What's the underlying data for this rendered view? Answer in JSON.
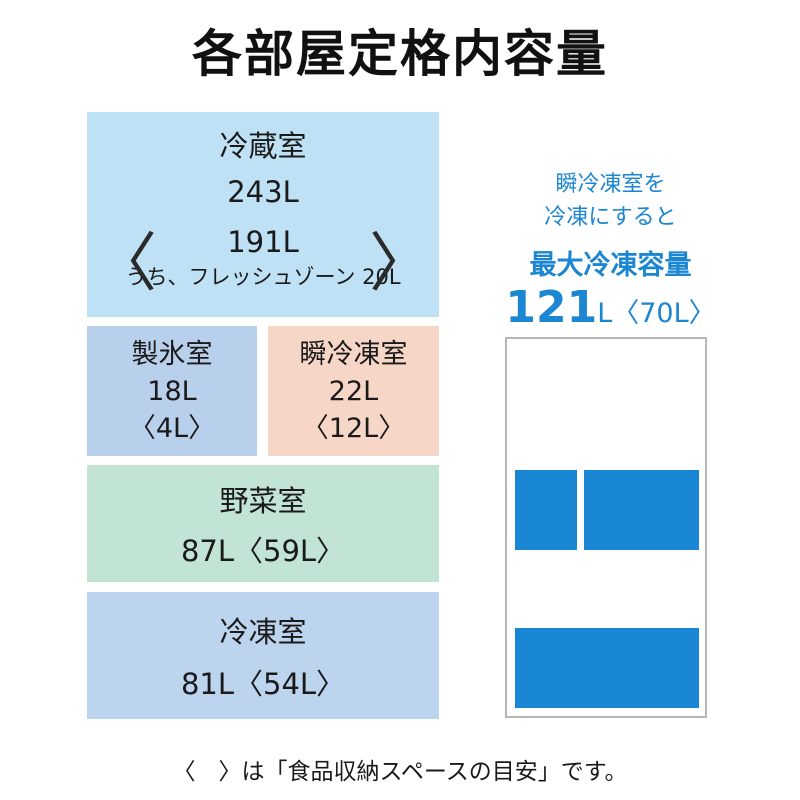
{
  "title": "各部屋定格内容量",
  "compartments": {
    "refrigerator": {
      "name": "冷蔵室",
      "total": "243L",
      "usable": "191L",
      "fresh_zone": "うち、フレッシュゾーン 20L",
      "open_bracket": "〈",
      "close_bracket": "〉"
    },
    "ice": {
      "name": "製氷室",
      "total": "18L",
      "usable": "〈4L〉"
    },
    "flash_freeze": {
      "name": "瞬冷凍室",
      "total": "22L",
      "usable": "〈12L〉"
    },
    "vegetable": {
      "name": "野菜室",
      "capacity": "87L〈59L〉"
    },
    "freezer": {
      "name": "冷凍室",
      "capacity": "81L〈54L〉"
    }
  },
  "promo": {
    "line1": "瞬冷凍室を",
    "line2": "冷凍にすると",
    "line3": "最大冷凍容量",
    "capacity_number": "121",
    "capacity_unit": "L〈70L〉"
  },
  "colors": {
    "refrigerator": "#bfe1f5",
    "ice": "#b9d0ec",
    "flash_freeze": "#f6d6c6",
    "vegetable": "#c1e4d4",
    "freezer": "#bdd4ee",
    "accent_blue": "#1a87d5"
  },
  "footnote": "〈　〉は「食品収納スペースの目安」です。"
}
